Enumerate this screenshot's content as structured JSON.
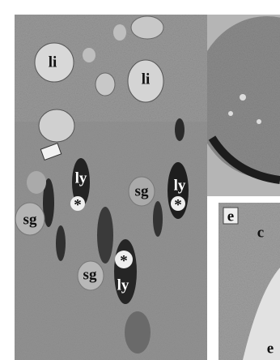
{
  "panels": [
    {
      "labels": [
        "li",
        "li",
        "ly",
        "ly",
        "sg",
        "*",
        "*",
        "sg",
        "*",
        "sg",
        "ly"
      ]
    },
    {
      "labels": []
    },
    {
      "labels": [
        "e",
        "c",
        "e"
      ]
    }
  ]
}
